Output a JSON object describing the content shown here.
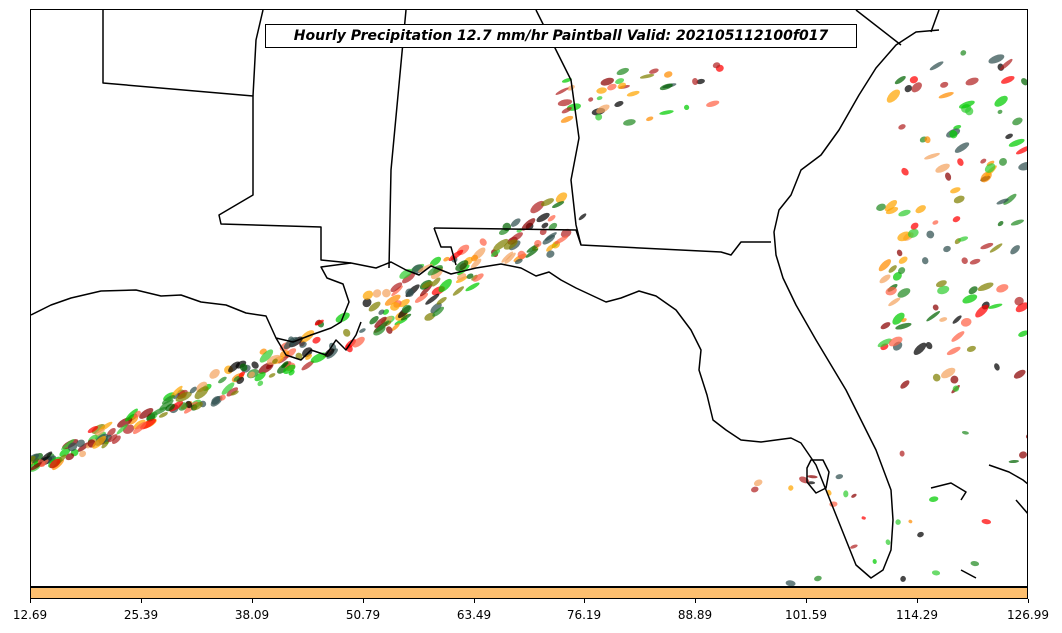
{
  "title": "Hourly Precipitation 12.7 mm/hr Paintball Valid: 202105112100f017",
  "colorbar": {
    "color": "#fdbf6f",
    "ticks": [
      "12.69",
      "25.39",
      "38.09",
      "50.79",
      "63.49",
      "76.19",
      "88.89",
      "101.59",
      "114.29",
      "126.99"
    ]
  },
  "colors": {
    "member_palette": [
      "#ff0000",
      "#00cc00",
      "#ff8c00",
      "#006400",
      "#808000",
      "#8b0000",
      "#ff6347",
      "#000000",
      "#f4a460",
      "#32cd32",
      "#ffa500",
      "#2f4f4f",
      "#b22222",
      "#228b22"
    ],
    "coastline": "#000000",
    "background": "#ffffff"
  },
  "map": {
    "projection": "geographic",
    "features": [
      "coastlines",
      "state-borders",
      "precipitation-paintball-blobs"
    ]
  }
}
